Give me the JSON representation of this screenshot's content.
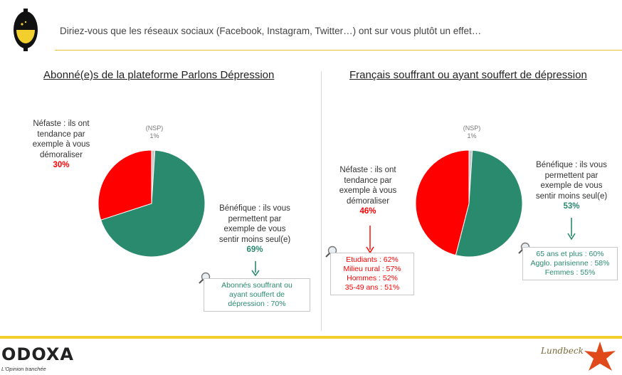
{
  "header": {
    "question": "Diriez-vous que les réseaux sociaux (Facebook, Instagram, Twitter…) ont sur vous plutôt un effet…"
  },
  "chart_data": [
    {
      "type": "pie",
      "title": "Abonné(e)s de la plateforme Parlons Dépression",
      "slices": [
        {
          "label": "Bénéfique : ils vous permettent par exemple de vous sentir moins seul(e)",
          "value": 69,
          "display": "69%",
          "color": "#2a8a6e"
        },
        {
          "label": "Néfaste : ils ont tendance par exemple à vous démoraliser",
          "value": 30,
          "display": "30%",
          "color": "#ff0000"
        },
        {
          "label": "(NSP)",
          "value": 1,
          "display": "1%",
          "color": "#c8c8c8"
        }
      ],
      "subgroups_positive": [
        "Abonnés souffrant ou ayant souffert de dépression : 70%"
      ],
      "subgroups_negative": []
    },
    {
      "type": "pie",
      "title": "Français souffrant ou ayant souffert de dépression",
      "slices": [
        {
          "label": "Bénéfique : ils vous permettent par exemple de vous sentir moins seul(e)",
          "value": 53,
          "display": "53%",
          "color": "#2a8a6e"
        },
        {
          "label": "Néfaste : ils ont tendance par exemple à vous démoraliser",
          "value": 46,
          "display": "46%",
          "color": "#ff0000"
        },
        {
          "label": "(NSP)",
          "value": 1,
          "display": "1%",
          "color": "#c8c8c8"
        }
      ],
      "subgroups_negative": [
        "Etudiants : 62%",
        "Milieu rural : 57%",
        "Hommes : 52%",
        "35-49 ans : 51%"
      ],
      "subgroups_positive": [
        "65 ans et plus : 60%",
        "Agglo. parisienne : 58%",
        "Femmes : 55%"
      ]
    }
  ],
  "labels": {
    "left_neg_lines": [
      "Néfaste : ils ont",
      "tendance par",
      "exemple à vous",
      "démoraliser"
    ],
    "left_pos_lines": [
      "Bénéfique : ils vous",
      "permettent par",
      "exemple de vous",
      "sentir moins seul(e)"
    ],
    "left_box_lines": [
      "Abonnés souffrant ou",
      "ayant souffert de",
      "dépression : 70%"
    ],
    "right_neg_lines": [
      "Néfaste : ils ont",
      "tendance par",
      "exemple à vous",
      "démoraliser"
    ],
    "right_pos_lines": [
      "Bénéfique : ils vous",
      "permettent par",
      "exemple de vous",
      "sentir moins seul(e)"
    ],
    "nsp": "(NSP)"
  },
  "footer": {
    "brand": "ODOXA",
    "tagline": "L'Opinion tranchée",
    "partner": "Lundbeck"
  },
  "colors": {
    "accent": "#f2cf2c",
    "positive": "#2a8a6e",
    "negative": "#ff0000"
  }
}
